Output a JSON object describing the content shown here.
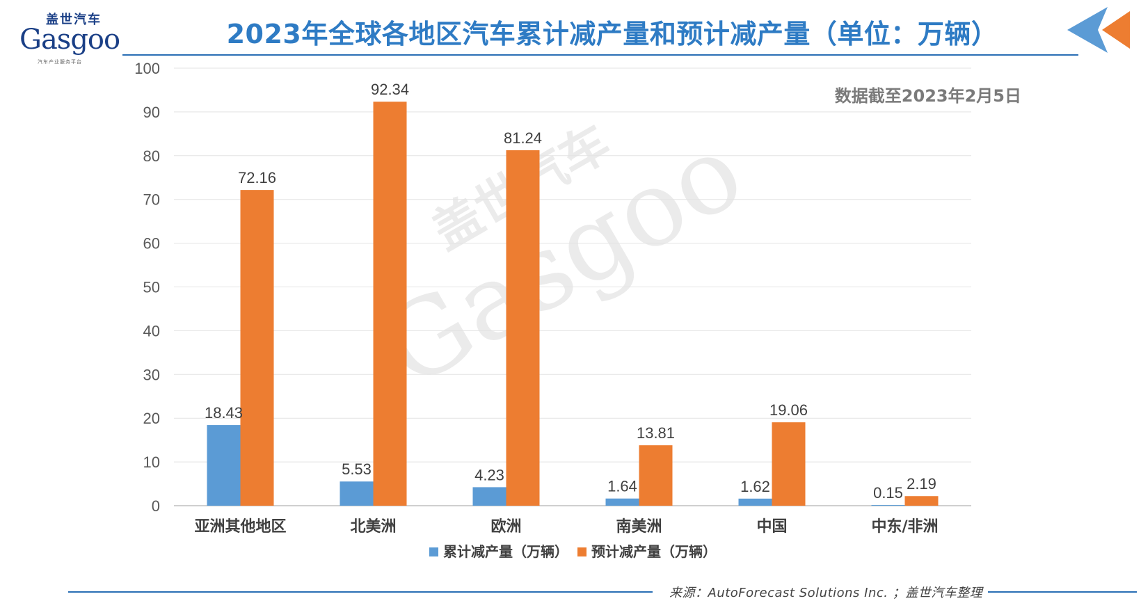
{
  "logo": {
    "cn": "盖世汽车",
    "en": "Gasgoo",
    "sub": "汽车产业服务平台"
  },
  "watermark": {
    "cn": "盖世汽车",
    "en": "Gasgoo"
  },
  "note": "数据截至2023年2月5日",
  "source": "来源：AutoForecast Solutions Inc. ；盖世汽车整理",
  "colors": {
    "series1": "#5b9bd5",
    "series2": "#ed7d31",
    "title": "#2e7bc4",
    "rule": "#2a6fb5"
  },
  "chart_data": {
    "type": "bar",
    "title": "2023年全球各地区汽车累计减产量和预计减产量（单位：万辆）",
    "categories": [
      "亚洲其他地区",
      "北美洲",
      "欧洲",
      "南美洲",
      "中国",
      "中东/非洲"
    ],
    "series": [
      {
        "name": "累计减产量（万辆）",
        "values": [
          18.43,
          5.53,
          4.23,
          1.64,
          1.62,
          0.15
        ]
      },
      {
        "name": "预计减产量（万辆）",
        "values": [
          72.16,
          92.34,
          81.24,
          13.81,
          19.06,
          2.19
        ]
      }
    ],
    "ylim": [
      0,
      100
    ],
    "yticks": [
      0,
      10,
      20,
      30,
      40,
      50,
      60,
      70,
      80,
      90,
      100
    ],
    "grid": true,
    "legend": "bottom"
  }
}
